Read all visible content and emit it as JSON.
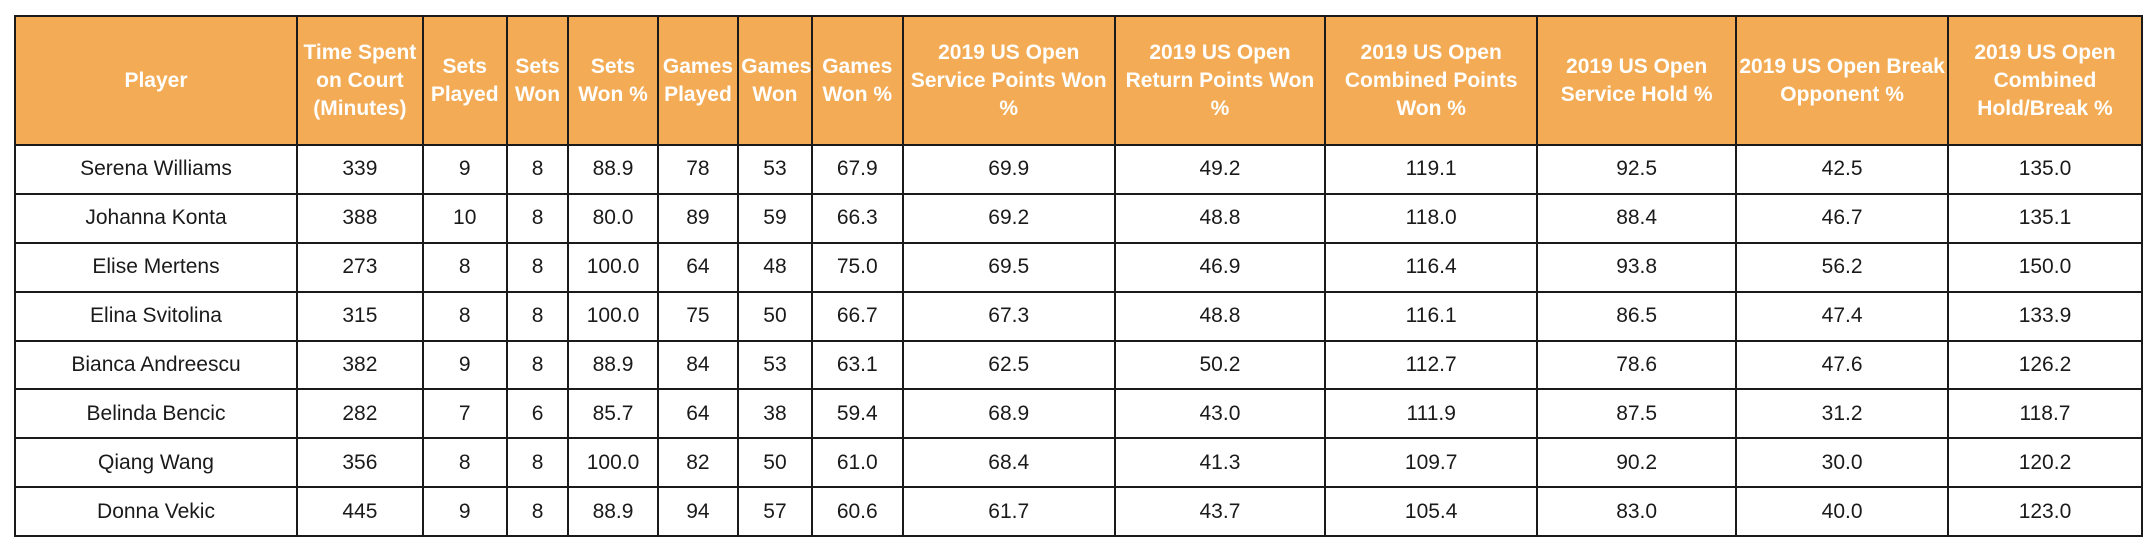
{
  "chart_data": {
    "type": "table",
    "header_color": "#f3ac55",
    "columns": [
      "Player",
      "Time Spent on Court (Minutes)",
      "Sets Played",
      "Sets Won",
      "Sets Won %",
      "Games Played",
      "Games Won",
      "Games Won %",
      "2019 US Open Service Points Won %",
      "2019 US Open Return Points Won %",
      "2019 US Open Combined Points Won %",
      "2019 US Open Service Hold %",
      "2019 US Open Break Opponent %",
      "2019 US Open Combined Hold/Break %"
    ],
    "rows": [
      [
        "Serena Williams",
        "339",
        "9",
        "8",
        "88.9",
        "78",
        "53",
        "67.9",
        "69.9",
        "49.2",
        "119.1",
        "92.5",
        "42.5",
        "135.0"
      ],
      [
        "Johanna Konta",
        "388",
        "10",
        "8",
        "80.0",
        "89",
        "59",
        "66.3",
        "69.2",
        "48.8",
        "118.0",
        "88.4",
        "46.7",
        "135.1"
      ],
      [
        "Elise Mertens",
        "273",
        "8",
        "8",
        "100.0",
        "64",
        "48",
        "75.0",
        "69.5",
        "46.9",
        "116.4",
        "93.8",
        "56.2",
        "150.0"
      ],
      [
        "Elina Svitolina",
        "315",
        "8",
        "8",
        "100.0",
        "75",
        "50",
        "66.7",
        "67.3",
        "48.8",
        "116.1",
        "86.5",
        "47.4",
        "133.9"
      ],
      [
        "Bianca Andreescu",
        "382",
        "9",
        "8",
        "88.9",
        "84",
        "53",
        "63.1",
        "62.5",
        "50.2",
        "112.7",
        "78.6",
        "47.6",
        "126.2"
      ],
      [
        "Belinda Bencic",
        "282",
        "7",
        "6",
        "85.7",
        "64",
        "38",
        "59.4",
        "68.9",
        "43.0",
        "111.9",
        "87.5",
        "31.2",
        "118.7"
      ],
      [
        "Qiang Wang",
        "356",
        "8",
        "8",
        "100.0",
        "82",
        "50",
        "61.0",
        "68.4",
        "41.3",
        "109.7",
        "90.2",
        "30.0",
        "120.2"
      ],
      [
        "Donna Vekic",
        "445",
        "9",
        "8",
        "88.9",
        "94",
        "57",
        "60.6",
        "61.7",
        "43.7",
        "105.4",
        "83.0",
        "40.0",
        "123.0"
      ]
    ]
  }
}
